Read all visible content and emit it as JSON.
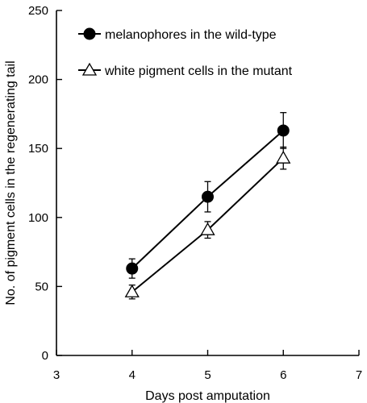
{
  "chart_data": {
    "type": "line",
    "title": "",
    "xlabel": "Days post amputation",
    "ylabel": "No. of pigment cells in the regenerating tail",
    "xlim": [
      3,
      7
    ],
    "ylim": [
      0,
      250
    ],
    "xticks": [
      3,
      4,
      5,
      6,
      7
    ],
    "yticks": [
      0,
      50,
      100,
      150,
      200,
      250
    ],
    "legend_position": "top-left",
    "grid": false,
    "series": [
      {
        "name": "melanophores in the wild-type",
        "marker": "filled-circle",
        "color": "#000000",
        "points": [
          {
            "x": 4,
            "y": 63,
            "err": 7
          },
          {
            "x": 5,
            "y": 115,
            "err": 11
          },
          {
            "x": 6,
            "y": 163,
            "err": 13
          }
        ]
      },
      {
        "name": "white pigment cells in the mutant",
        "marker": "open-triangle",
        "color": "#000000",
        "points": [
          {
            "x": 4,
            "y": 46,
            "err": 5
          },
          {
            "x": 5,
            "y": 91,
            "err": 6
          },
          {
            "x": 6,
            "y": 143,
            "err": 8
          }
        ]
      }
    ]
  }
}
